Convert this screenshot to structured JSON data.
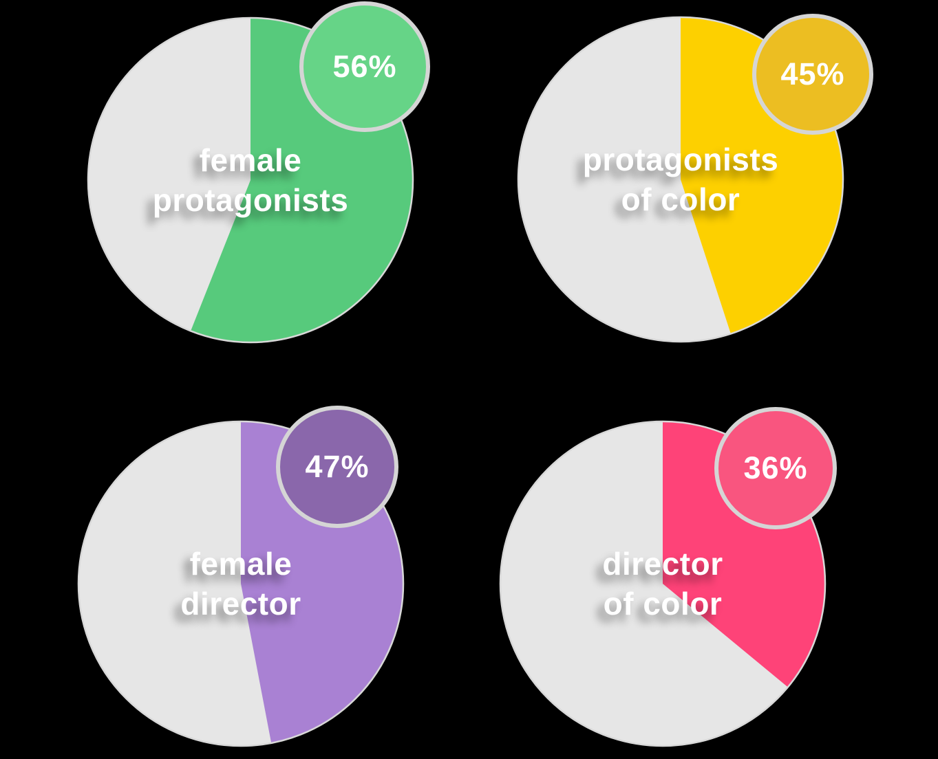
{
  "canvas": {
    "background": "#000000",
    "remainder_color": "#e6e6e6",
    "pie_rim_color": "#d8d8d8",
    "badge_ring_color": "#d5d5d5",
    "label_text_color": "#ffffff"
  },
  "chart_data": [
    {
      "type": "pie",
      "title": "female protagonists",
      "badge_label": "56%",
      "label_lines": [
        "female",
        "protagonists"
      ],
      "values": [
        {
          "label": "female protagonists",
          "value": 56,
          "color": "#57ca7c"
        },
        {
          "label": "remainder",
          "value": 44,
          "color": "#e6e6e6"
        }
      ],
      "badge_color": "#66d487",
      "start_angle_deg": 0,
      "direction": "clockwise",
      "badge_position": "top-right",
      "legend": "off"
    },
    {
      "type": "pie",
      "title": "protagonists of color",
      "badge_label": "45%",
      "label_lines": [
        "protagonists",
        "of color"
      ],
      "values": [
        {
          "label": "protagonists of color",
          "value": 45,
          "color": "#fdd000"
        },
        {
          "label": "remainder",
          "value": 55,
          "color": "#e6e6e6"
        }
      ],
      "badge_color": "#ecbe22",
      "start_angle_deg": 0,
      "direction": "clockwise",
      "badge_position": "top-right",
      "legend": "off"
    },
    {
      "type": "pie",
      "title": "female director",
      "badge_label": "47%",
      "label_lines": [
        "female",
        "director"
      ],
      "values": [
        {
          "label": "female director",
          "value": 47,
          "color": "#a981d3"
        },
        {
          "label": "remainder",
          "value": 53,
          "color": "#e6e6e6"
        }
      ],
      "badge_color": "#8a67ab",
      "start_angle_deg": 0,
      "direction": "clockwise",
      "badge_position": "top-right",
      "legend": "off"
    },
    {
      "type": "pie",
      "title": "director of color",
      "badge_label": "36%",
      "label_lines": [
        "director",
        "of color"
      ],
      "values": [
        {
          "label": "director of color",
          "value": 36,
          "color": "#fe4378"
        },
        {
          "label": "remainder",
          "value": 64,
          "color": "#e6e6e6"
        }
      ],
      "badge_color": "#f9557f",
      "start_angle_deg": 0,
      "direction": "clockwise",
      "badge_position": "top-right",
      "legend": "off"
    }
  ]
}
